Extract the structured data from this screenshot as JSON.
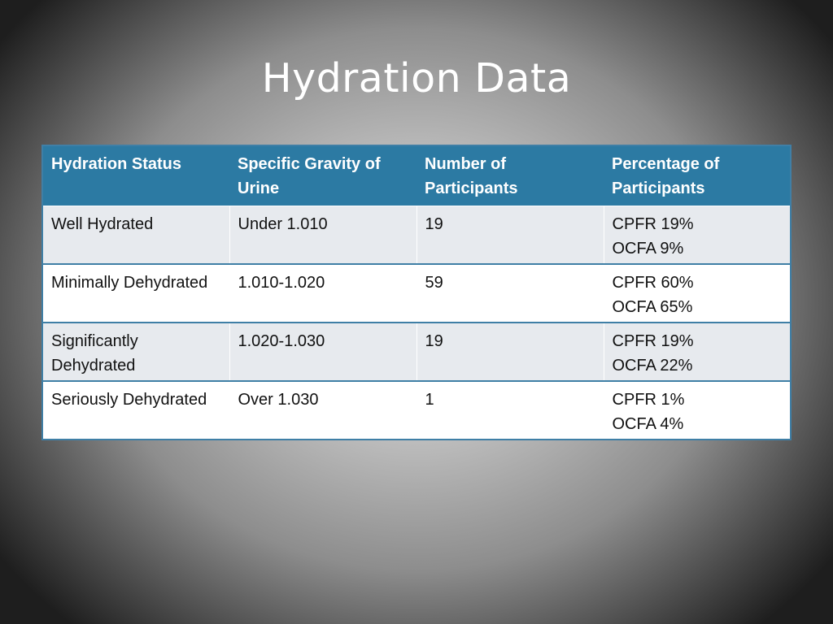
{
  "slide": {
    "title": "Hydration Data"
  },
  "table": {
    "headers": [
      "Hydration Status",
      "Specific Gravity of Urine",
      "Number of Participants",
      "Percentage of Participants"
    ],
    "rows": [
      {
        "status": "Well Hydrated",
        "gravity": "Under 1.010",
        "count": "19",
        "pct_cpfr": "CPFR 19%",
        "pct_ocfa": "OCFA 9%"
      },
      {
        "status": "Minimally Dehydrated",
        "gravity": "1.010-1.020",
        "count": "59",
        "pct_cpfr": "CPFR 60%",
        "pct_ocfa": "OCFA 65%"
      },
      {
        "status": "Significantly Dehydrated",
        "gravity": "1.020-1.030",
        "count": "19",
        "pct_cpfr": "CPFR 19%",
        "pct_ocfa": "OCFA 22%"
      },
      {
        "status": "Seriously Dehydrated",
        "gravity": "Over 1.030",
        "count": "1",
        "pct_cpfr": "CPFR 1%",
        "pct_ocfa": "OCFA 4%"
      }
    ]
  },
  "colors": {
    "header_bg": "#2c7aa3",
    "row_band": "#e7eaee",
    "row_plain": "#ffffff",
    "border": "#3f7fa6",
    "title_text": "#ffffff"
  }
}
